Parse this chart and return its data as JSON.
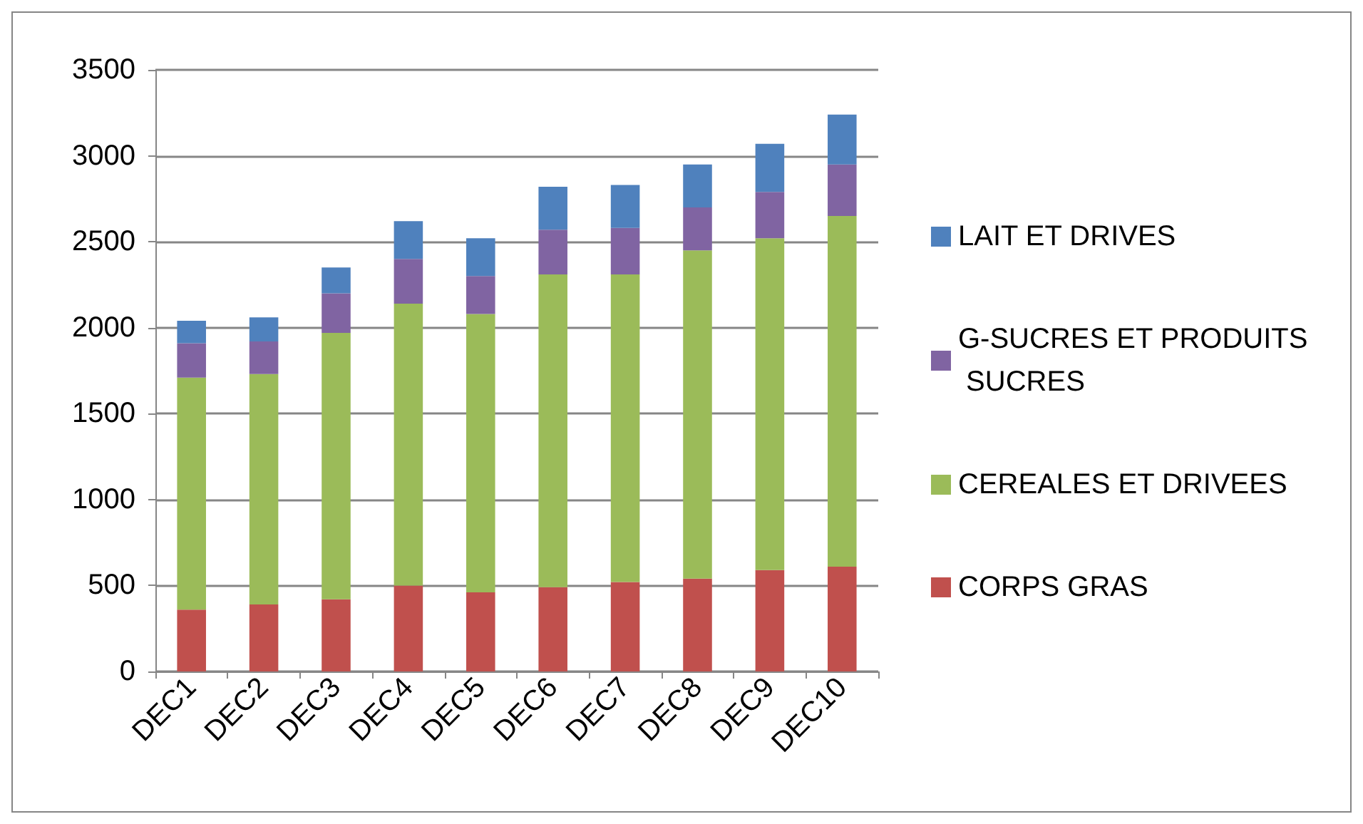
{
  "chart_data": {
    "type": "bar",
    "stacked": true,
    "categories": [
      "DEC1",
      "DEC2",
      "DEC3",
      "DEC4",
      "DEC5",
      "DEC6",
      "DEC7",
      "DEC8",
      "DEC9",
      "DEC10"
    ],
    "series": [
      {
        "name": "CORPS GRAS",
        "color": "#c0504d",
        "values": [
          360,
          390,
          420,
          500,
          460,
          490,
          520,
          540,
          590,
          610
        ]
      },
      {
        "name": "CEREALES ET DRIVEES",
        "color": "#9bbb59",
        "values": [
          1350,
          1340,
          1550,
          1640,
          1620,
          1820,
          1790,
          1910,
          1930,
          2040
        ]
      },
      {
        "name": "G-SUCRES ET PRODUITS SUCRES",
        "color": "#8064a2",
        "values": [
          200,
          190,
          230,
          260,
          220,
          260,
          270,
          250,
          270,
          300
        ]
      },
      {
        "name": "LAIT ET DRIVES",
        "color": "#4f81bd",
        "values": [
          130,
          140,
          150,
          220,
          220,
          250,
          250,
          250,
          280,
          290
        ]
      }
    ],
    "ylim": [
      0,
      3500
    ],
    "yticks": [
      0,
      500,
      1000,
      1500,
      2000,
      2500,
      3000,
      3500
    ],
    "grid": "y",
    "legend": "right"
  }
}
